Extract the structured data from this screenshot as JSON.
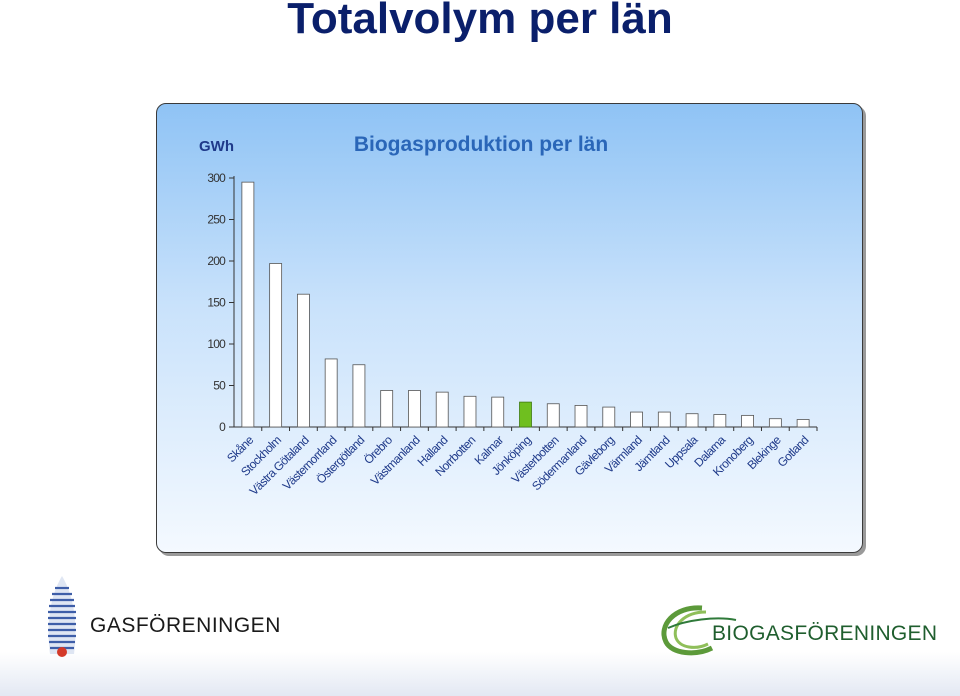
{
  "slide_title": "Totalvolym per län",
  "logos": {
    "left_text": "GASFÖRENINGEN",
    "right_text": "BIOGASFÖRENINGEN"
  },
  "chart_data": {
    "type": "bar",
    "title": "Biogasproduktion per län",
    "ylabel": "GWh",
    "xlabel": "",
    "ylim": [
      0,
      300
    ],
    "yticks": [
      0,
      50,
      100,
      150,
      200,
      250,
      300
    ],
    "grid": false,
    "categories": [
      "Skåne",
      "Stockholm",
      "Västra Götaland",
      "Västernorrland",
      "Östergötland",
      "Örebro",
      "Västmanland",
      "Halland",
      "Norrbotten",
      "Kalmar",
      "Jönköping",
      "Västerbotten",
      "Södermanland",
      "Gävleborg",
      "Värmland",
      "Jämtland",
      "Uppsala",
      "Dalarna",
      "Kronoberg",
      "Blekinge",
      "Gotland"
    ],
    "values": [
      295,
      197,
      160,
      82,
      75,
      44,
      44,
      42,
      37,
      36,
      30,
      28,
      26,
      24,
      18,
      18,
      16,
      15,
      14,
      10,
      9
    ],
    "highlight_index": 10,
    "colors": {
      "bar": "#ffffff",
      "bar_stroke": "#555555",
      "highlight": "#6fbf1f",
      "title": "#2a66b8"
    }
  }
}
